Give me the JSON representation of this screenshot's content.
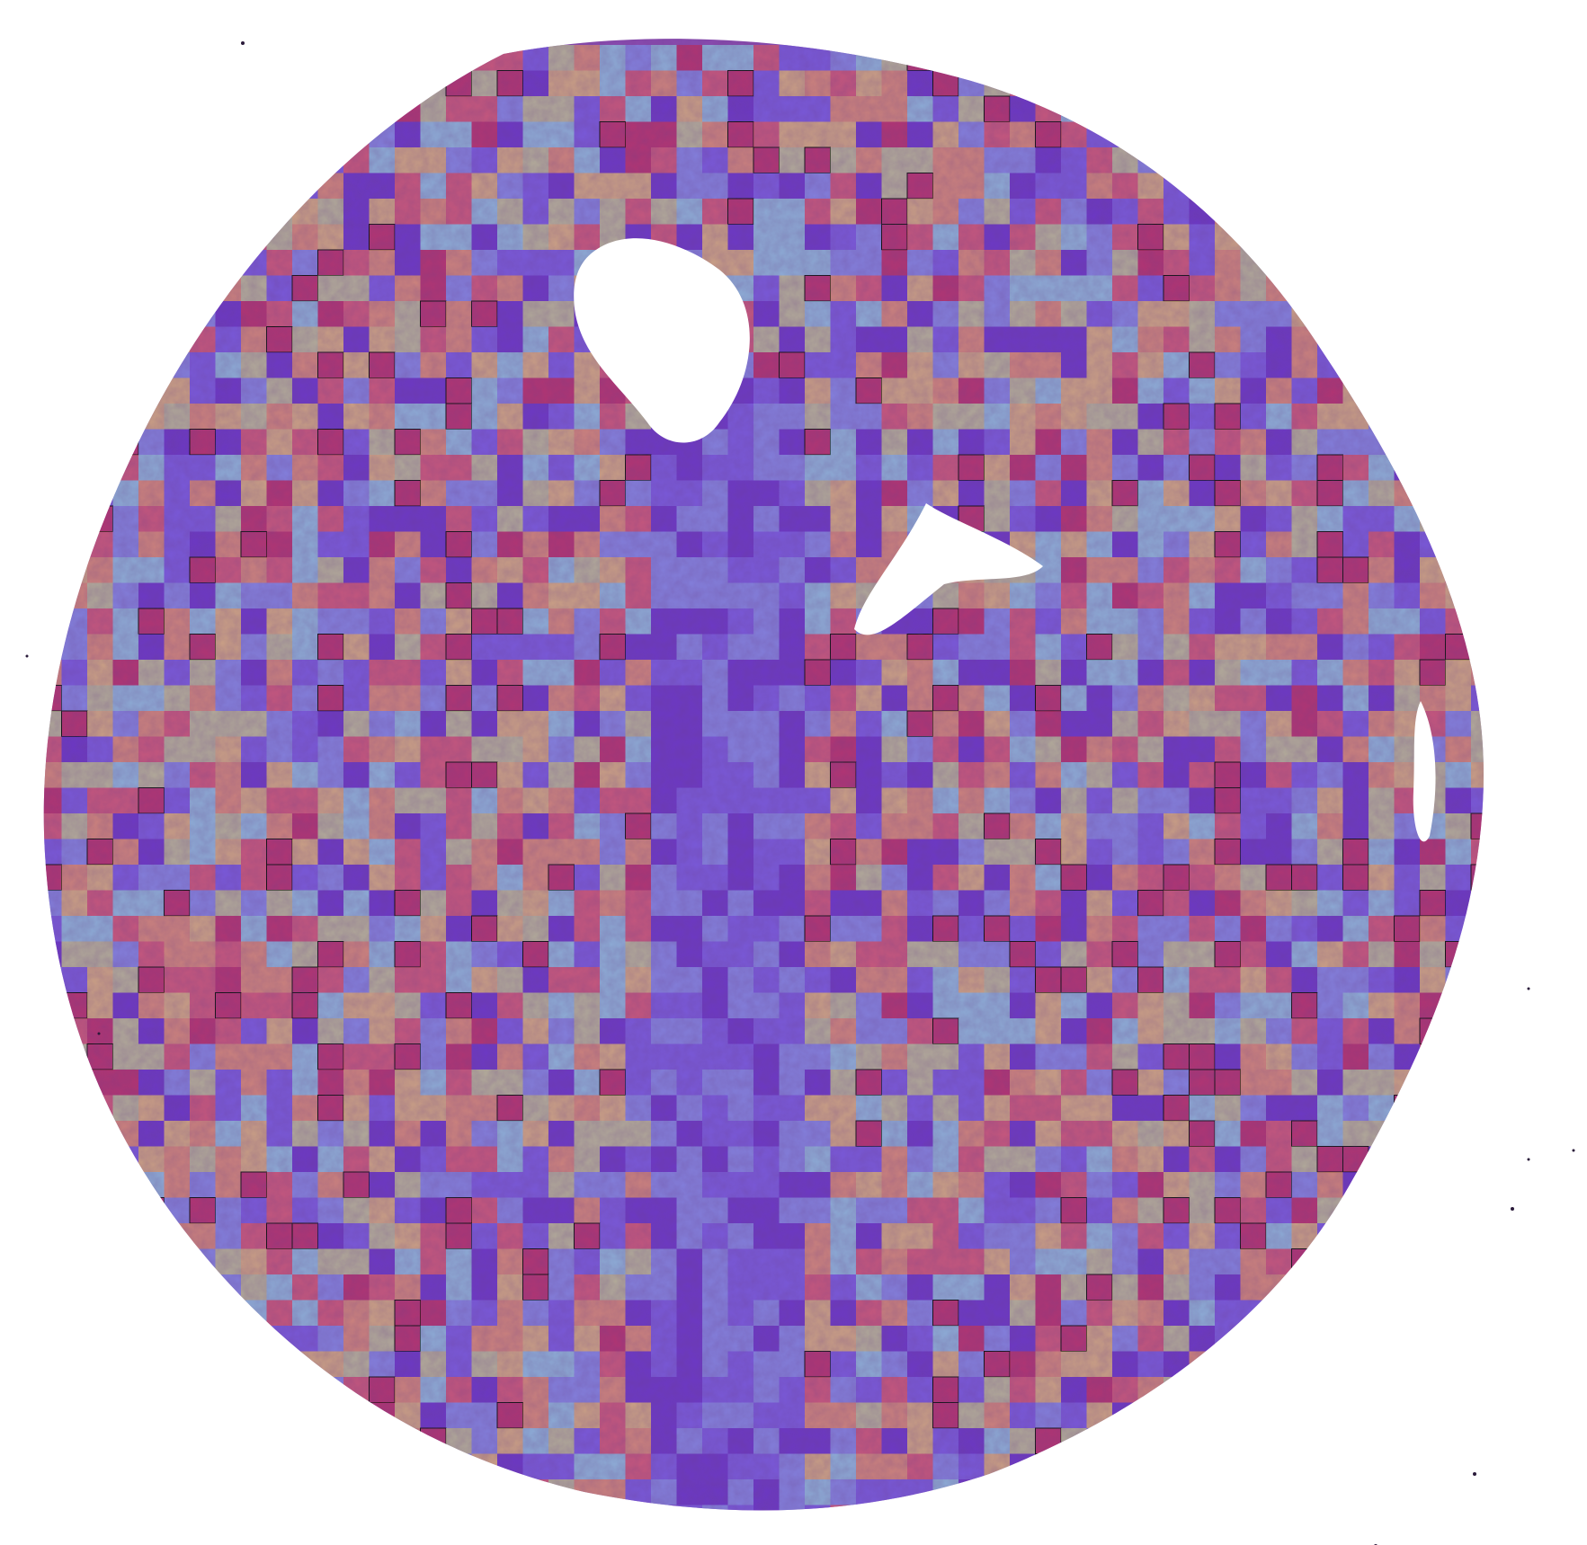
{
  "image": {
    "subject": "",
    "background_color": "#ffffff",
    "tissue_base_color": "#8a4bb0",
    "heatmap_palette": [
      "#5a2fd0",
      "#6f63f0",
      "#7fa0f5",
      "#8fe6ec",
      "#c9e38a",
      "#f1d36a",
      "#f4a55e",
      "#e8605e",
      "#c8284e"
    ],
    "highlight_outline_color": "#111111"
  }
}
